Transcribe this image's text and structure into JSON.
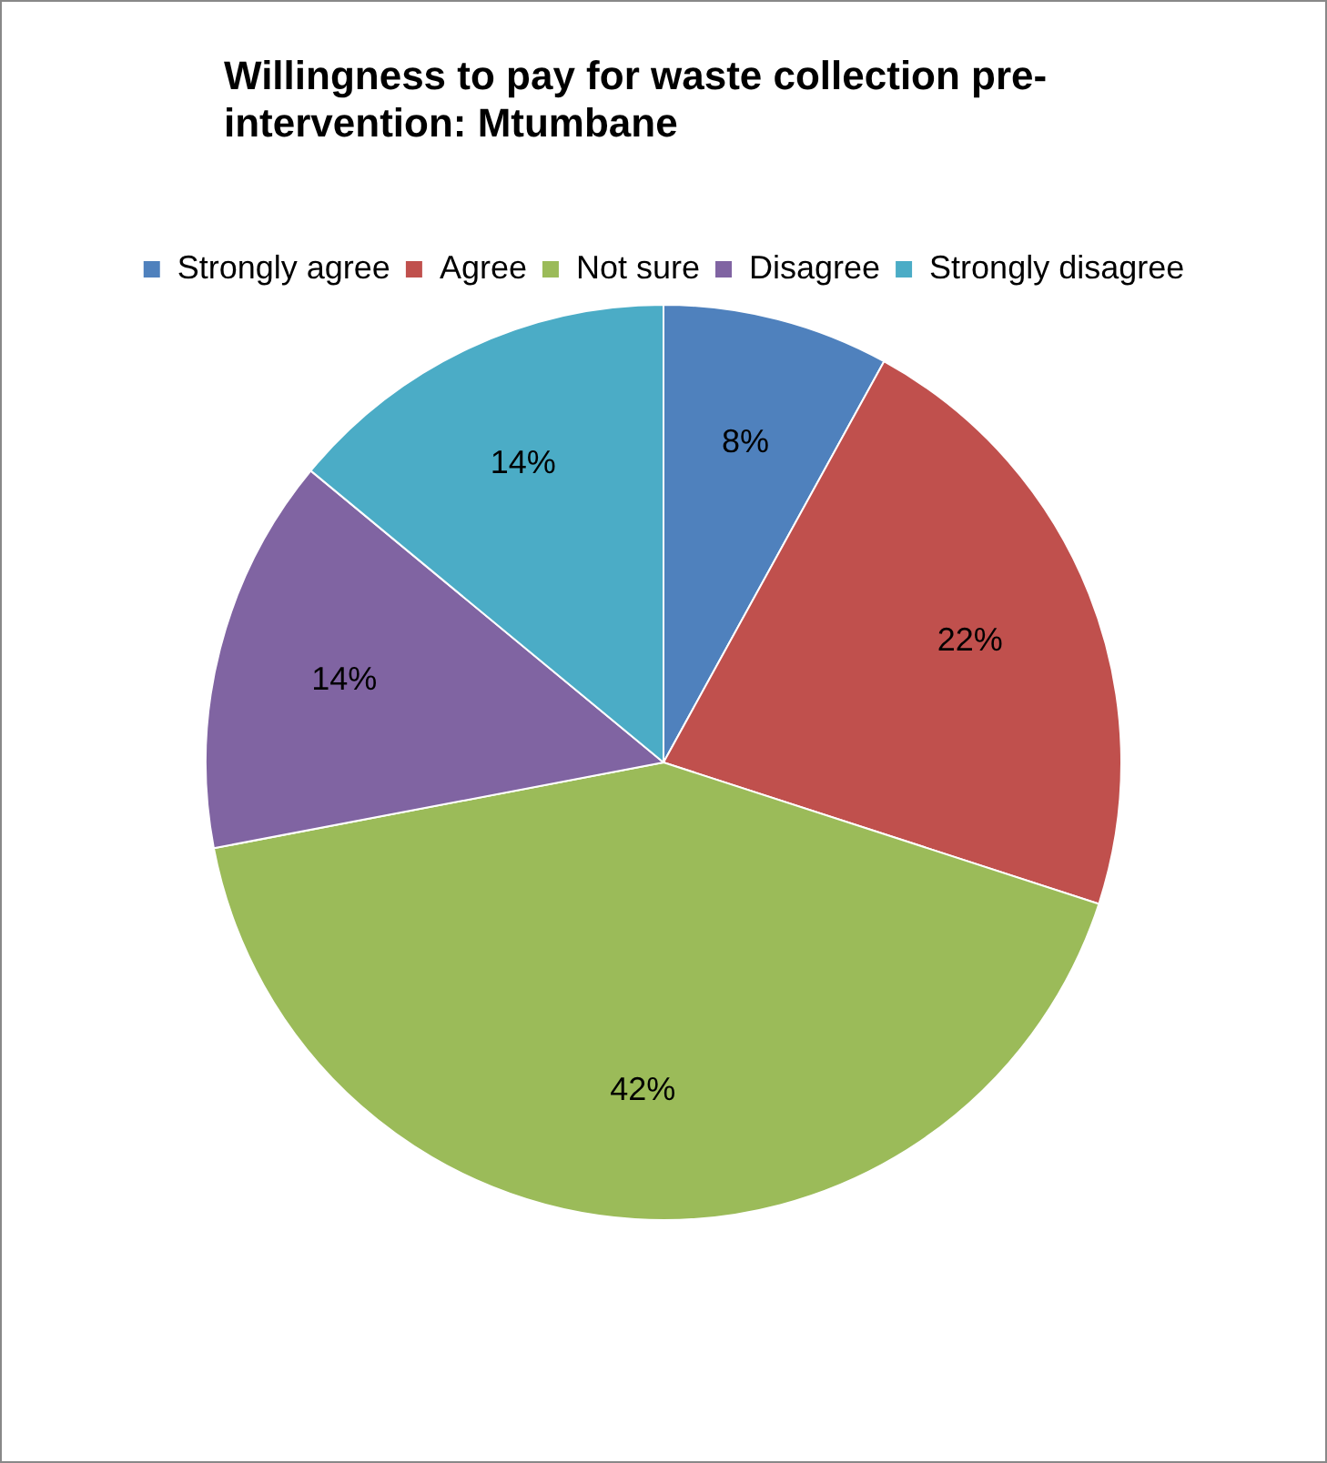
{
  "chart_data": {
    "type": "pie",
    "title": "Willingness to pay for waste collection pre-intervention: Mtumbane",
    "categories": [
      "Strongly agree",
      "Agree",
      "Not sure",
      "Disagree",
      "Strongly disagree"
    ],
    "values": [
      8,
      22,
      42,
      14,
      14
    ],
    "value_labels": [
      "8%",
      "22%",
      "42%",
      "14%",
      "14%"
    ],
    "colors": [
      "#4f81bd",
      "#c0504d",
      "#9bbb59",
      "#8064a2",
      "#4bacc6"
    ],
    "legend": "top"
  }
}
